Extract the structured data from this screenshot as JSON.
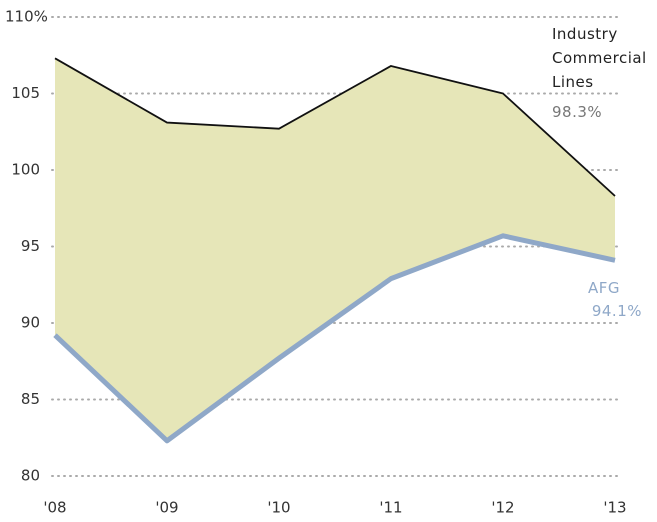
{
  "chart_data": {
    "type": "line",
    "categories": [
      "'08",
      "'09",
      "'10",
      "'11",
      "'12",
      "'13"
    ],
    "series": [
      {
        "name": "Industry Commercial Lines",
        "color": "#111111",
        "values": [
          107.3,
          103.1,
          102.7,
          106.8,
          105.0,
          98.3
        ],
        "value_labels": [
          null,
          null,
          null,
          null,
          null,
          "98.3%"
        ]
      },
      {
        "name": "AFG",
        "color": "#8fa8c8",
        "values": [
          89.2,
          82.3,
          87.7,
          92.9,
          95.7,
          94.1
        ],
        "value_labels": [
          null,
          null,
          null,
          null,
          null,
          "94.1%"
        ]
      }
    ],
    "fill_color": "#e6e6b8",
    "ylim": [
      80,
      110
    ],
    "yticks": [
      80,
      85,
      90,
      95,
      100,
      105,
      {
        "value": 110,
        "label": "110%"
      }
    ],
    "grid": true
  }
}
